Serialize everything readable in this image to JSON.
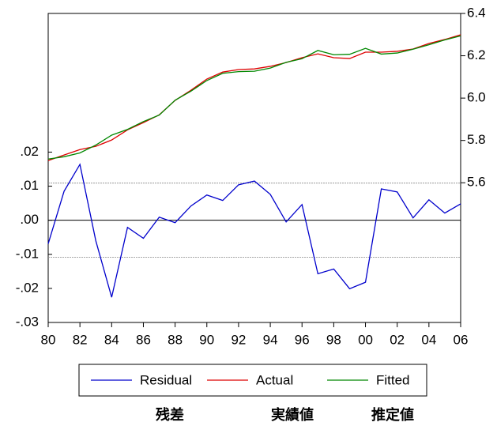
{
  "chart_data": {
    "type": "line",
    "x": [
      1980,
      1981,
      1982,
      1983,
      1984,
      1985,
      1986,
      1987,
      1988,
      1989,
      1990,
      1991,
      1992,
      1993,
      1994,
      1995,
      1996,
      1997,
      1998,
      1999,
      2000,
      2001,
      2002,
      2003,
      2004,
      2005,
      2006
    ],
    "xlim": [
      1980,
      2006
    ],
    "xticks": [
      {
        "value": 1980,
        "label": "80"
      },
      {
        "value": 1982,
        "label": "82"
      },
      {
        "value": 1984,
        "label": "84"
      },
      {
        "value": 1986,
        "label": "86"
      },
      {
        "value": 1988,
        "label": "88"
      },
      {
        "value": 1990,
        "label": "90"
      },
      {
        "value": 1992,
        "label": "92"
      },
      {
        "value": 1994,
        "label": "94"
      },
      {
        "value": 1996,
        "label": "96"
      },
      {
        "value": 1998,
        "label": "98"
      },
      {
        "value": 2000,
        "label": "00"
      },
      {
        "value": 2002,
        "label": "02"
      },
      {
        "value": 2004,
        "label": "04"
      },
      {
        "value": 2006,
        "label": "06"
      }
    ],
    "ylim": [
      -0.03,
      0.0607
    ],
    "yticks": [
      {
        "value": 0.02,
        "label": ".02"
      },
      {
        "value": 0.01,
        "label": ".01"
      },
      {
        "value": 0,
        "label": ".00"
      },
      {
        "value": -0.01,
        "label": "-.01"
      },
      {
        "value": -0.02,
        "label": "-.02"
      },
      {
        "value": -0.03,
        "label": "-.03"
      }
    ],
    "y2lim": [
      4.94,
      6.4
    ],
    "y2ticks": [
      6.4,
      6.2,
      {
        "value": 6,
        "label": "6.0"
      },
      5.8,
      5.6
    ],
    "reference_lines": [
      {
        "value": 0.0109,
        "dashed": true
      },
      {
        "value": 0,
        "dashed": false
      },
      {
        "value": -0.0109,
        "dashed": true
      }
    ],
    "series": [
      {
        "name": "Residual",
        "color": "#0000cc",
        "values": [
          -0.0069,
          0.0085,
          0.0164,
          -0.006,
          -0.0226,
          -0.0021,
          -0.0053,
          0.0009,
          -0.0007,
          0.0042,
          0.0074,
          0.0058,
          0.0104,
          0.0115,
          0.0076,
          -0.0005,
          0.0046,
          -0.0157,
          -0.0143,
          -0.0201,
          -0.0182,
          0.0092,
          0.0083,
          0.0007,
          0.006,
          0.0021,
          0.0048
        ]
      },
      {
        "name": "Actual",
        "color": "#dd0000",
        "axis": "y2",
        "values": [
          5.705,
          5.731,
          5.757,
          5.772,
          5.802,
          5.85,
          5.884,
          5.921,
          5.989,
          6.037,
          6.09,
          6.123,
          6.135,
          6.138,
          6.15,
          6.168,
          6.191,
          6.209,
          6.191,
          6.187,
          6.217,
          6.217,
          6.221,
          6.232,
          6.258,
          6.277,
          6.299
        ]
      },
      {
        "name": "Fitted",
        "color": "#008800",
        "axis": "y2",
        "values": [
          5.712,
          5.723,
          5.741,
          5.778,
          5.825,
          5.852,
          5.889,
          5.92,
          5.99,
          6.033,
          6.083,
          6.117,
          6.125,
          6.127,
          6.142,
          6.169,
          6.186,
          6.225,
          6.205,
          6.207,
          6.235,
          6.208,
          6.213,
          6.231,
          6.252,
          6.275,
          6.294
        ]
      }
    ],
    "legend_captions": [
      "残差",
      "実績値",
      "推定値"
    ]
  }
}
